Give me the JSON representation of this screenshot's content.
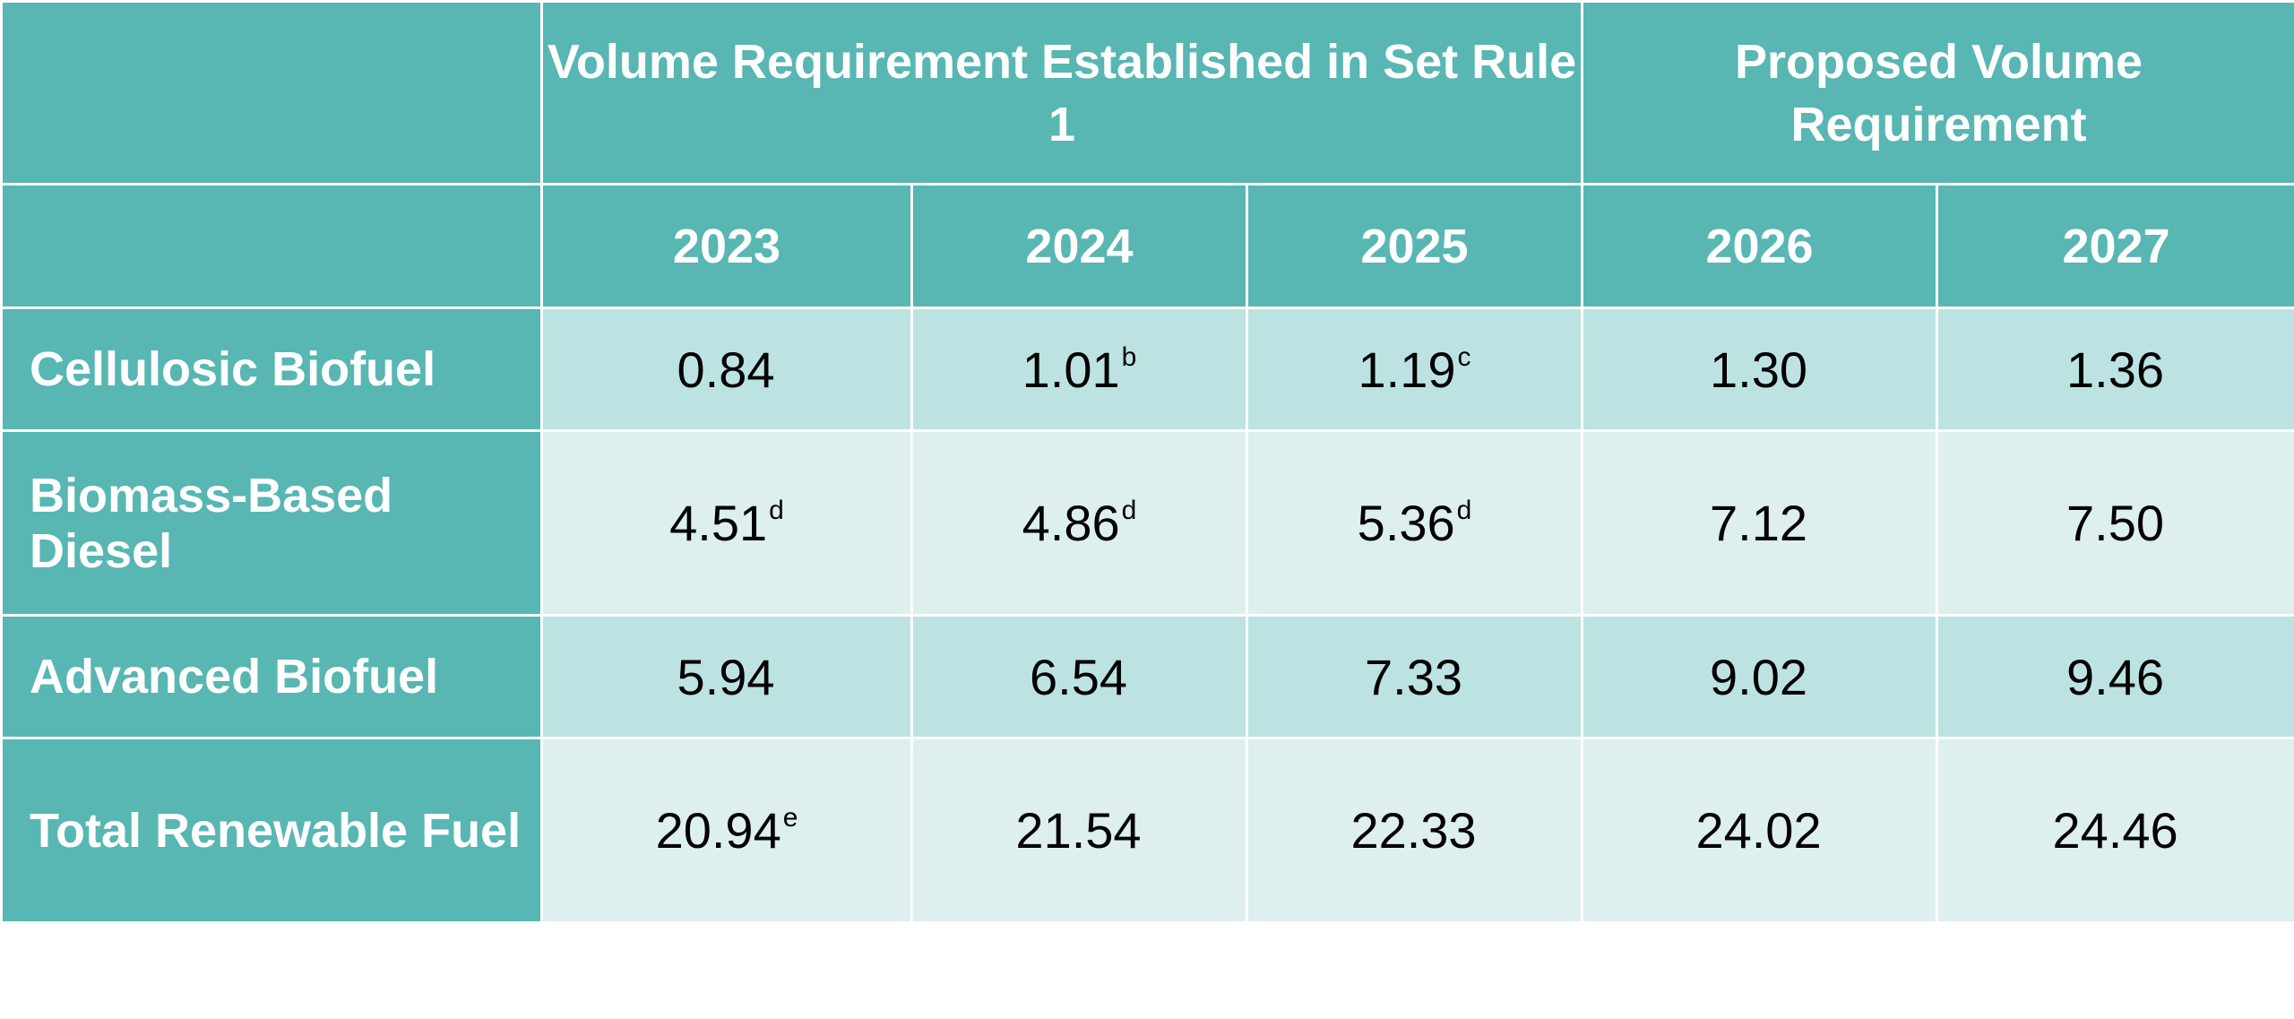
{
  "header": {
    "group1": "Volume Requirement Established in Set Rule 1",
    "group2": "Proposed Volume Requirement",
    "years": [
      "2023",
      "2024",
      "2025",
      "2026",
      "2027"
    ]
  },
  "rows": [
    {
      "label": "Cellulosic Biofuel",
      "values": [
        "0.84",
        "1.01",
        "1.19",
        "1.30",
        "1.36"
      ],
      "notes": [
        "",
        "b",
        "c",
        "",
        ""
      ]
    },
    {
      "label": "Biomass-Based Diesel",
      "values": [
        "4.51",
        "4.86",
        "5.36",
        "7.12",
        "7.50"
      ],
      "notes": [
        "d",
        "d",
        "d",
        "",
        ""
      ]
    },
    {
      "label": "Advanced Biofuel",
      "values": [
        "5.94",
        "6.54",
        "7.33",
        "9.02",
        "9.46"
      ],
      "notes": [
        "",
        "",
        "",
        "",
        ""
      ]
    },
    {
      "label": "Total Renewable Fuel",
      "values": [
        "20.94",
        "21.54",
        "22.33",
        "24.02",
        "24.46"
      ],
      "notes": [
        "e",
        "",
        "",
        "",
        ""
      ]
    }
  ],
  "colors": {
    "header": "#58b6b3",
    "row_dark": "#bce3e1",
    "row_light": "#ddefee"
  }
}
